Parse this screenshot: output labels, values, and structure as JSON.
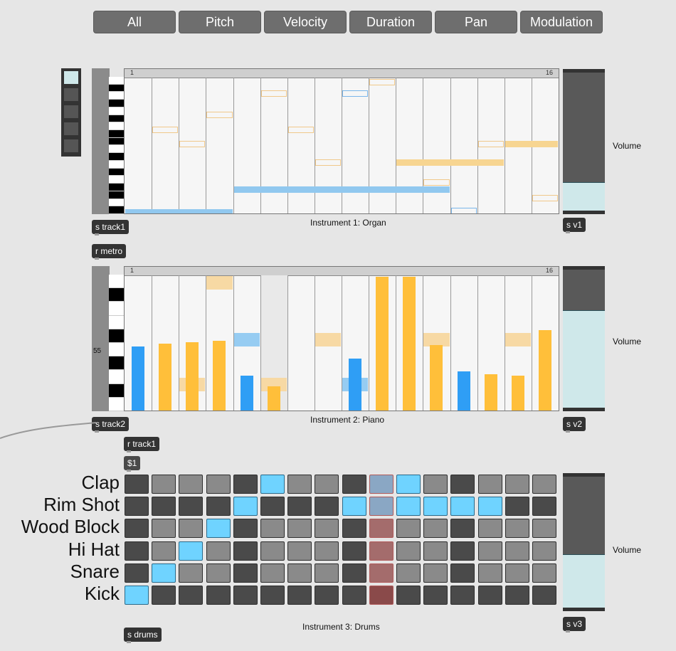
{
  "tabs": [
    "All",
    "Pitch",
    "Velocity",
    "Duration",
    "Pan",
    "Modulation"
  ],
  "objects": {
    "s_track1": "s track1",
    "r_metro": "r metro",
    "s_track2": "s track2",
    "r_track1": "r track1",
    "msg_1": "$1",
    "s_drums": "s drums",
    "s_v1": "s v1",
    "s_v2": "s v2",
    "s_v3": "s v3"
  },
  "instrument1": {
    "caption": "Instrument 1: Organ",
    "ruler_start": "1",
    "ruler_end": "16",
    "volume_label": "Volume",
    "volume_level": 0.2,
    "notes": [
      {
        "step": 1,
        "row": 9.2,
        "len": 4,
        "color": "#91c8ef",
        "filled": true
      },
      {
        "step": 5,
        "row": 7.6,
        "len": 8,
        "color": "#91c8ef",
        "filled": true
      },
      {
        "step": 2,
        "row": 3.4,
        "len": 1,
        "color": "#f0c88a",
        "filled": false
      },
      {
        "step": 3,
        "row": 4.4,
        "len": 1,
        "color": "#f0c88a",
        "filled": false
      },
      {
        "step": 4,
        "row": 2.4,
        "len": 1,
        "color": "#f0c88a",
        "filled": false
      },
      {
        "step": 6,
        "row": 0.9,
        "len": 1,
        "color": "#f0c88a",
        "filled": false
      },
      {
        "step": 7,
        "row": 3.4,
        "len": 1,
        "color": "#f0c88a",
        "filled": false
      },
      {
        "step": 8,
        "row": 5.7,
        "len": 1,
        "color": "#f0c88a",
        "filled": false
      },
      {
        "step": 9,
        "row": 0.9,
        "len": 1,
        "color": "#7ab6ea",
        "filled": false
      },
      {
        "step": 10,
        "row": 0.1,
        "len": 1,
        "color": "#f0c88a",
        "filled": false
      },
      {
        "step": 11,
        "row": 5.7,
        "len": 4,
        "color": "#f7d591",
        "filled": true
      },
      {
        "step": 12,
        "row": 7.1,
        "len": 1,
        "color": "#f0c88a",
        "filled": false
      },
      {
        "step": 13,
        "row": 9.1,
        "len": 1,
        "color": "#7ab6ea",
        "filled": false
      },
      {
        "step": 14,
        "row": 4.4,
        "len": 1,
        "color": "#f0c88a",
        "filled": false
      },
      {
        "step": 15,
        "row": 4.4,
        "len": 2,
        "color": "#f7d591",
        "filled": true
      },
      {
        "step": 16,
        "row": 8.2,
        "len": 1,
        "color": "#f0c88a",
        "filled": false
      }
    ]
  },
  "instrument2": {
    "caption": "Instrument 2: Piano",
    "ruler_start": "1",
    "ruler_end": "16",
    "side_value": "55",
    "volume_label": "Volume",
    "volume_level": 0.7,
    "velocities": [
      {
        "step": 1,
        "value": 0.48,
        "color": "#2f9ef5"
      },
      {
        "step": 2,
        "value": 0.5,
        "color": "#ffbf3a"
      },
      {
        "step": 3,
        "value": 0.51,
        "color": "#ffbf3a"
      },
      {
        "step": 4,
        "value": 0.52,
        "color": "#ffbf3a"
      },
      {
        "step": 5,
        "value": 0.26,
        "color": "#2f9ef5"
      },
      {
        "step": 6,
        "value": 0.18,
        "color": "#ffbf3a"
      },
      {
        "step": 9,
        "value": 0.39,
        "color": "#2f9ef5"
      },
      {
        "step": 10,
        "value": 1.0,
        "color": "#ffbf3a"
      },
      {
        "step": 11,
        "value": 1.0,
        "color": "#ffbf3a"
      },
      {
        "step": 12,
        "value": 0.49,
        "color": "#ffbf3a"
      },
      {
        "step": 13,
        "value": 0.29,
        "color": "#2f9ef5"
      },
      {
        "step": 14,
        "value": 0.27,
        "color": "#ffbf3a"
      },
      {
        "step": 15,
        "value": 0.26,
        "color": "#ffbf3a"
      },
      {
        "step": 16,
        "value": 0.6,
        "color": "#ffbf3a"
      }
    ],
    "note_blocks": [
      {
        "step": 3,
        "row": 7.3,
        "color": "#f7d9a4"
      },
      {
        "step": 4,
        "row": 0.0,
        "color": "#f7d9a4"
      },
      {
        "step": 5,
        "row": 4.1,
        "color": "#96ccf2"
      },
      {
        "step": 6,
        "row": 7.3,
        "color": "#f7d9a4"
      },
      {
        "step": 8,
        "row": 4.1,
        "color": "#f7d9a4"
      },
      {
        "step": 9,
        "row": 7.3,
        "color": "#96ccf2"
      },
      {
        "step": 12,
        "row": 4.1,
        "color": "#f7d9a4"
      },
      {
        "step": 15,
        "row": 4.1,
        "color": "#f7d9a4"
      }
    ],
    "highlight_step": 6
  },
  "drums": {
    "caption": "Instrument 3: Drums",
    "volume_label": "Volume",
    "volume_level": 0.4,
    "rows": [
      {
        "label": "Clap",
        "pattern": "d l l l d b l l d x b l d l l l"
      },
      {
        "label": "Rim Shot",
        "pattern": "d d d d b d d d b x b b b b d d"
      },
      {
        "label": "Wood  Block",
        "pattern": "d l l b d l l l d r l l d l l l"
      },
      {
        "label": "Hi Hat",
        "pattern": "d l b l d l l l d r l l d l l l"
      },
      {
        "label": "Snare",
        "pattern": "d b l l d l l l d r l l d l l l"
      },
      {
        "label": "Kick",
        "pattern": "b d d d d d d d d k d d d d d d"
      }
    ],
    "colors": {
      "d": "#4a4a4a",
      "l": "#8a8a8a",
      "b": "#6fd3ff",
      "x": "#8aa7c4",
      "r": "#a46c6c",
      "k": "#8a4a4a"
    }
  },
  "sequence_buttons": {
    "count": 5,
    "active_index": 0
  }
}
